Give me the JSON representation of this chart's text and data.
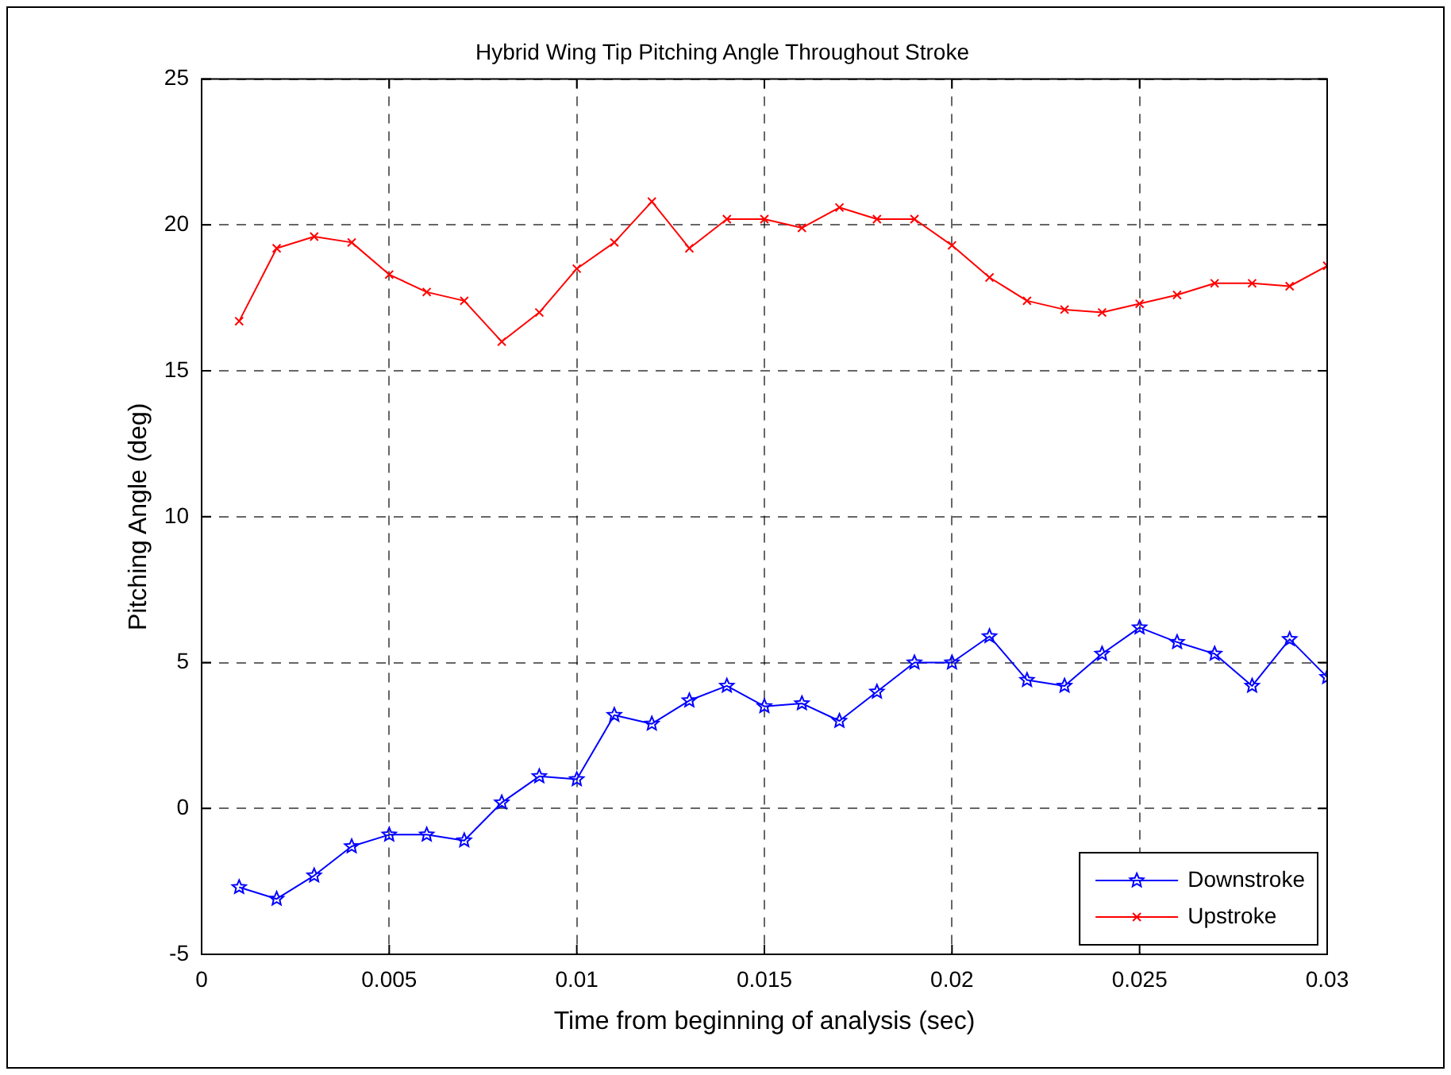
{
  "chart_data": {
    "type": "line",
    "title": "Hybrid Wing Tip Pitching Angle Throughout Stroke",
    "xlabel": "Time from beginning of analysis (sec)",
    "ylabel": "Pitching Angle (deg)",
    "x": [
      0.001,
      0.002,
      0.003,
      0.004,
      0.005,
      0.006,
      0.007,
      0.008,
      0.009,
      0.01,
      0.011,
      0.012,
      0.013,
      0.014,
      0.015,
      0.016,
      0.017,
      0.018,
      0.019,
      0.02,
      0.021,
      0.022,
      0.023,
      0.024,
      0.025,
      0.026,
      0.027,
      0.028,
      0.029,
      0.03
    ],
    "series": [
      {
        "name": "Downstroke",
        "color": "#0000ff",
        "marker": "star",
        "values": [
          -2.7,
          -3.1,
          -2.3,
          -1.3,
          -0.9,
          -0.9,
          -1.1,
          0.2,
          1.1,
          1.0,
          3.2,
          2.9,
          3.7,
          4.2,
          3.5,
          3.6,
          3.0,
          4.0,
          5.0,
          5.0,
          5.9,
          4.4,
          4.2,
          5.3,
          6.2,
          5.7,
          5.3,
          4.2,
          5.8,
          4.5
        ]
      },
      {
        "name": "Upstroke",
        "color": "#ff0000",
        "marker": "cross",
        "values": [
          16.7,
          19.2,
          19.6,
          19.4,
          18.3,
          17.7,
          17.4,
          16.0,
          17.0,
          18.5,
          19.4,
          20.8,
          19.2,
          20.2,
          20.2,
          19.9,
          20.6,
          20.2,
          20.2,
          19.3,
          18.2,
          17.4,
          17.1,
          17.0,
          17.3,
          17.6,
          18.0,
          18.0,
          17.9,
          18.6
        ]
      }
    ],
    "xlim": [
      0,
      0.03
    ],
    "xticks": [
      0,
      0.005,
      0.01,
      0.015,
      0.02,
      0.025,
      0.03
    ],
    "ylim": [
      -5,
      25
    ],
    "yticks": [
      -5,
      0,
      5,
      10,
      15,
      20,
      25
    ],
    "grid": true,
    "legend": "bottom right",
    "line_style": "solid"
  }
}
